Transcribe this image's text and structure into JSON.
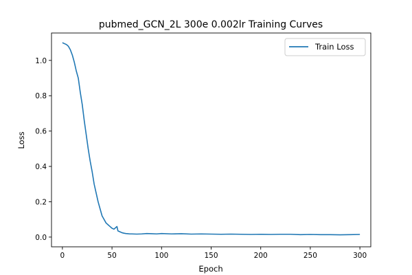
{
  "chart_data": {
    "type": "line",
    "title": "pubmed_GCN_2L  300e  0.002lr  Training Curves",
    "xlabel": "Epoch",
    "ylabel": "Loss",
    "xlim": [
      -11,
      311
    ],
    "ylim": [
      -0.055,
      1.155
    ],
    "xticks": [
      0,
      50,
      100,
      150,
      200,
      250,
      300
    ],
    "yticks": [
      0.0,
      0.2,
      0.4,
      0.6,
      0.8,
      1.0
    ],
    "ytick_labels": [
      "0.0",
      "0.2",
      "0.4",
      "0.6",
      "0.8",
      "1.0"
    ],
    "grid": false,
    "legend_position": "upper right",
    "series": [
      {
        "name": "Train Loss",
        "color": "#1f77b4",
        "x": [
          0,
          2,
          4,
          6,
          8,
          10,
          12,
          14,
          16,
          18,
          20,
          22,
          24,
          26,
          28,
          30,
          32,
          34,
          36,
          38,
          40,
          42,
          44,
          46,
          48,
          50,
          52,
          54,
          55,
          56,
          58,
          60,
          62,
          64,
          66,
          68,
          70,
          75,
          80,
          85,
          90,
          95,
          100,
          110,
          120,
          130,
          140,
          150,
          160,
          170,
          180,
          190,
          200,
          210,
          220,
          230,
          240,
          250,
          260,
          270,
          280,
          290,
          300
        ],
        "y": [
          1.1,
          1.095,
          1.09,
          1.08,
          1.06,
          1.03,
          0.99,
          0.94,
          0.9,
          0.82,
          0.75,
          0.66,
          0.58,
          0.5,
          0.43,
          0.37,
          0.3,
          0.25,
          0.2,
          0.16,
          0.12,
          0.1,
          0.08,
          0.07,
          0.06,
          0.05,
          0.045,
          0.055,
          0.06,
          0.035,
          0.03,
          0.025,
          0.022,
          0.02,
          0.019,
          0.018,
          0.018,
          0.017,
          0.018,
          0.02,
          0.019,
          0.018,
          0.02,
          0.018,
          0.019,
          0.017,
          0.018,
          0.017,
          0.016,
          0.017,
          0.016,
          0.015,
          0.016,
          0.015,
          0.016,
          0.016,
          0.014,
          0.015,
          0.014,
          0.014,
          0.013,
          0.014,
          0.015
        ]
      }
    ]
  }
}
